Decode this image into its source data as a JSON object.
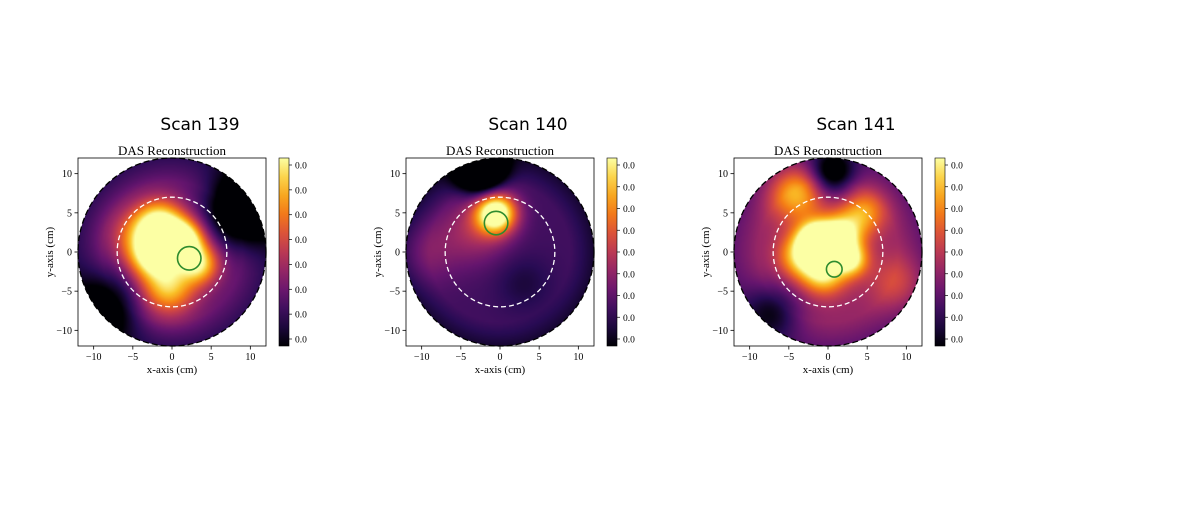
{
  "chart_data": [
    {
      "type": "heatmap",
      "figure_title": "Scan 139",
      "title": "DAS Reconstruction",
      "xlabel": "x-axis (cm)",
      "ylabel": "y-axis (cm)",
      "xlim": [
        -12,
        12
      ],
      "ylim": [
        -12,
        12
      ],
      "xticks": [
        -10,
        -5,
        0,
        5,
        10
      ],
      "yticks": [
        10,
        5,
        0,
        -5,
        -10
      ],
      "colorbar_ticks": [
        "0.0",
        "0.0",
        "0.0",
        "0.0",
        "0.0",
        "0.0",
        "0.0",
        "0.0"
      ],
      "colormap": "inferno",
      "field_radius": 12,
      "dashed_circle": {
        "cx": 0,
        "cy": 0,
        "r": 7
      },
      "target_circle": {
        "cx": 2.2,
        "cy": -0.8,
        "r": 1.5
      },
      "hotspots": [
        {
          "x": -1.5,
          "y": 3.5,
          "s": 2.2,
          "v": 0.75
        },
        {
          "x": -2.5,
          "y": -0.5,
          "s": 2.0,
          "v": 0.65
        },
        {
          "x": -0.5,
          "y": -4.5,
          "s": 2.5,
          "v": 0.6
        },
        {
          "x": 1.5,
          "y": 1.5,
          "s": 1.8,
          "v": 0.85
        },
        {
          "x": 3.5,
          "y": -1.5,
          "s": 1.8,
          "v": 0.6
        },
        {
          "x": -4.5,
          "y": 2.0,
          "s": 2.5,
          "v": 0.35
        },
        {
          "x": 9.0,
          "y": 5.5,
          "s": 3.0,
          "v": -0.6
        },
        {
          "x": -8.5,
          "y": -7.0,
          "s": 3.0,
          "v": -0.35
        }
      ],
      "base": 0.28
    },
    {
      "type": "heatmap",
      "figure_title": "Scan 140",
      "title": "DAS Reconstruction",
      "xlabel": "x-axis (cm)",
      "ylabel": "y-axis (cm)",
      "xlim": [
        -12,
        12
      ],
      "ylim": [
        -12,
        12
      ],
      "xticks": [
        -10,
        -5,
        0,
        5,
        10
      ],
      "yticks": [
        10,
        5,
        0,
        -5,
        -10
      ],
      "colorbar_ticks": [
        "0.0",
        "0.0",
        "0.0",
        "0.0",
        "0.0",
        "0.0",
        "0.0",
        "0.0",
        "0.0"
      ],
      "colormap": "inferno",
      "field_radius": 12,
      "dashed_circle": {
        "cx": 0,
        "cy": 0,
        "r": 7
      },
      "target_circle": {
        "cx": -0.5,
        "cy": 3.7,
        "r": 1.5
      },
      "hotspots": [
        {
          "x": -0.5,
          "y": 5.0,
          "s": 1.8,
          "v": 0.95
        },
        {
          "x": -3.0,
          "y": 3.0,
          "s": 3.0,
          "v": 0.25
        },
        {
          "x": -2.5,
          "y": 10.5,
          "s": 2.0,
          "v": -0.9
        },
        {
          "x": 3.0,
          "y": -4.0,
          "s": 2.5,
          "v": -0.1
        },
        {
          "x": -9.5,
          "y": 0.0,
          "s": 3.0,
          "v": 0.15
        }
      ],
      "base": 0.2
    },
    {
      "type": "heatmap",
      "figure_title": "Scan 141",
      "title": "DAS Reconstruction",
      "xlabel": "x-axis (cm)",
      "ylabel": "y-axis (cm)",
      "xlim": [
        -12,
        12
      ],
      "ylim": [
        -12,
        12
      ],
      "xticks": [
        -10,
        -5,
        0,
        5,
        10
      ],
      "yticks": [
        10,
        5,
        0,
        -5,
        -10
      ],
      "colorbar_ticks": [
        "0.0",
        "0.0",
        "0.0",
        "0.0",
        "0.0",
        "0.0",
        "0.0",
        "0.0",
        "0.0"
      ],
      "colormap": "inferno",
      "field_radius": 12,
      "dashed_circle": {
        "cx": 0,
        "cy": 0,
        "r": 7
      },
      "target_circle": {
        "cx": 0.8,
        "cy": -2.2,
        "r": 1.0
      },
      "hotspots": [
        {
          "x": -1.5,
          "y": 1.5,
          "s": 1.6,
          "v": 0.95
        },
        {
          "x": 1.5,
          "y": 2.0,
          "s": 1.8,
          "v": 0.75
        },
        {
          "x": -0.5,
          "y": -2.5,
          "s": 2.0,
          "v": 0.6
        },
        {
          "x": 3.0,
          "y": -1.0,
          "s": 1.5,
          "v": 0.55
        },
        {
          "x": -3.5,
          "y": -0.5,
          "s": 2.0,
          "v": 0.5
        },
        {
          "x": -4.0,
          "y": 7.5,
          "s": 2.5,
          "v": 0.45
        },
        {
          "x": 4.5,
          "y": 5.0,
          "s": 2.0,
          "v": 0.4
        },
        {
          "x": 9.0,
          "y": -4.0,
          "s": 2.5,
          "v": 0.2
        },
        {
          "x": 0.5,
          "y": 10.0,
          "s": 2.0,
          "v": -0.5
        },
        {
          "x": -7.0,
          "y": -7.5,
          "s": 2.5,
          "v": -0.3
        }
      ],
      "base": 0.4
    }
  ]
}
